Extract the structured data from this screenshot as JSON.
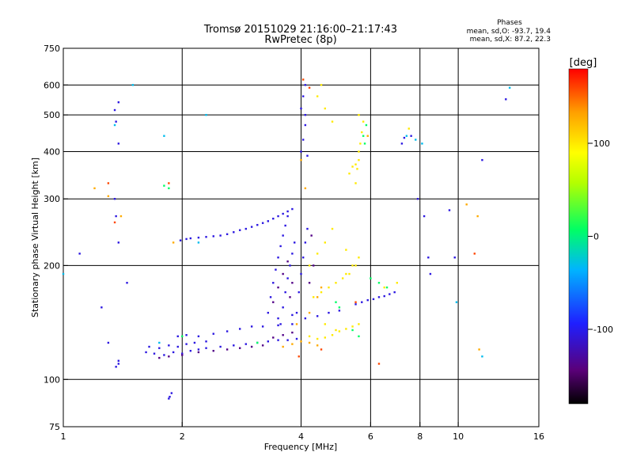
{
  "chart_data": {
    "type": "scatter",
    "title": "Tromsø 20151029 21:16:00–21:17:43",
    "subtitle": "RwPretec (8p)",
    "xlabel": "Frequency [MHz]",
    "ylabel": "Stationary phase Virtual Height [km]",
    "x_scale": "log",
    "y_scale": "log",
    "xlim": [
      1,
      16
    ],
    "ylim": [
      75,
      750
    ],
    "x_ticks": [
      1,
      2,
      4,
      6,
      8,
      10,
      16
    ],
    "y_ticks": [
      75,
      100,
      200,
      300,
      400,
      500,
      600,
      750
    ],
    "grid_x": [
      2,
      4,
      6,
      8,
      10
    ],
    "grid_y": [
      100,
      200,
      300,
      400,
      500,
      600
    ],
    "phase_stats": {
      "title": "Phases",
      "line_o": "mean, sd,O: -93.7, 19.4",
      "line_x": "mean, sd,X:  87.2, 22.3"
    },
    "colorbar": {
      "label": "[deg]",
      "range": [
        -180,
        180
      ],
      "ticks": [
        100,
        0,
        -100
      ],
      "colors": [
        "#000000",
        "#5a0078",
        "#1f1fff",
        "#00b4ff",
        "#00ff64",
        "#b4ff00",
        "#ffff00",
        "#ffa000",
        "#ff0000"
      ]
    },
    "series": [
      {
        "phase": -100,
        "points": [
          [
            1.62,
            118
          ],
          [
            1.7,
            117
          ],
          [
            1.8,
            116
          ],
          [
            1.9,
            118
          ],
          [
            2.0,
            117
          ],
          [
            2.1,
            119
          ],
          [
            2.2,
            120
          ],
          [
            2.3,
            121
          ],
          [
            2.5,
            122
          ],
          [
            2.7,
            123
          ],
          [
            2.9,
            124
          ],
          [
            3.1,
            125
          ],
          [
            3.3,
            126
          ],
          [
            3.5,
            127
          ],
          [
            3.7,
            127
          ],
          [
            3.9,
            128
          ],
          [
            1.65,
            122
          ],
          [
            1.75,
            121
          ],
          [
            1.85,
            123
          ],
          [
            1.95,
            122
          ],
          [
            2.05,
            124
          ],
          [
            2.15,
            125
          ],
          [
            2.3,
            126
          ],
          [
            1.95,
            130
          ],
          [
            2.05,
            131
          ],
          [
            2.2,
            130
          ],
          [
            2.4,
            132
          ],
          [
            2.6,
            134
          ],
          [
            2.8,
            136
          ],
          [
            3.0,
            138
          ],
          [
            3.2,
            138
          ],
          [
            3.5,
            139
          ],
          [
            3.8,
            140
          ],
          [
            1.98,
            233
          ],
          [
            2.05,
            235
          ],
          [
            2.1,
            236
          ],
          [
            2.2,
            237
          ],
          [
            2.3,
            238
          ],
          [
            2.4,
            239
          ],
          [
            2.5,
            240
          ],
          [
            2.6,
            242
          ],
          [
            2.7,
            245
          ],
          [
            2.8,
            248
          ],
          [
            2.9,
            250
          ],
          [
            3.0,
            253
          ],
          [
            3.1,
            256
          ],
          [
            3.2,
            259
          ],
          [
            3.3,
            262
          ],
          [
            3.4,
            266
          ],
          [
            3.5,
            270
          ],
          [
            3.6,
            274
          ],
          [
            3.7,
            278
          ],
          [
            3.8,
            282
          ],
          [
            3.3,
            150
          ],
          [
            3.35,
            165
          ],
          [
            3.4,
            180
          ],
          [
            3.45,
            195
          ],
          [
            3.5,
            210
          ],
          [
            3.55,
            225
          ],
          [
            3.6,
            240
          ],
          [
            3.65,
            255
          ],
          [
            3.7,
            270
          ],
          [
            3.55,
            140
          ],
          [
            3.6,
            155
          ],
          [
            3.65,
            170
          ],
          [
            3.7,
            185
          ],
          [
            3.75,
            200
          ],
          [
            3.8,
            215
          ],
          [
            3.85,
            230
          ],
          [
            3.9,
            150
          ],
          [
            3.95,
            170
          ],
          [
            4.0,
            190
          ],
          [
            4.05,
            210
          ],
          [
            4.1,
            230
          ],
          [
            4.15,
            250
          ],
          [
            4.0,
            400
          ],
          [
            4.05,
            430
          ],
          [
            4.1,
            470
          ],
          [
            4.0,
            520
          ],
          [
            4.05,
            560
          ],
          [
            4.1,
            600
          ],
          [
            4.15,
            390
          ],
          [
            4.1,
            500
          ],
          [
            5.5,
            158
          ],
          [
            5.7,
            160
          ],
          [
            5.9,
            162
          ],
          [
            6.1,
            163
          ],
          [
            6.3,
            165
          ],
          [
            6.5,
            166
          ],
          [
            6.7,
            168
          ],
          [
            6.9,
            170
          ],
          [
            3.5,
            145
          ],
          [
            3.8,
            148
          ],
          [
            4.1,
            145
          ],
          [
            4.4,
            147
          ],
          [
            4.7,
            150
          ],
          [
            5.0,
            152
          ],
          [
            1.35,
            515
          ],
          [
            1.38,
            540
          ],
          [
            1.36,
            480
          ],
          [
            1.38,
            420
          ],
          [
            1.35,
            300
          ],
          [
            1.36,
            270
          ],
          [
            1.38,
            230
          ],
          [
            1.38,
            110
          ],
          [
            1.36,
            108
          ],
          [
            1.38,
            112
          ],
          [
            1.86,
            90
          ],
          [
            1.88,
            92
          ],
          [
            1.85,
            89
          ],
          [
            7.2,
            420
          ],
          [
            7.3,
            435
          ],
          [
            7.6,
            440
          ],
          [
            7.9,
            300
          ],
          [
            8.2,
            270
          ],
          [
            8.4,
            210
          ],
          [
            8.5,
            190
          ],
          [
            9.5,
            280
          ],
          [
            9.8,
            210
          ],
          [
            11.5,
            380
          ],
          [
            13.2,
            550
          ],
          [
            1.1,
            215
          ],
          [
            1.45,
            180
          ],
          [
            1.25,
            155
          ],
          [
            1.3,
            125
          ]
        ]
      },
      {
        "phase": -130,
        "points": [
          [
            1.75,
            114
          ],
          [
            1.85,
            115
          ],
          [
            2.0,
            116
          ],
          [
            2.2,
            118
          ],
          [
            2.4,
            119
          ],
          [
            2.6,
            120
          ],
          [
            2.8,
            121
          ],
          [
            3.0,
            122
          ],
          [
            3.2,
            123
          ],
          [
            3.4,
            160
          ],
          [
            3.5,
            175
          ],
          [
            3.6,
            190
          ],
          [
            3.7,
            205
          ],
          [
            3.75,
            165
          ],
          [
            3.8,
            180
          ],
          [
            3.4,
            129
          ],
          [
            3.6,
            131
          ],
          [
            3.8,
            133
          ],
          [
            4.2,
            180
          ],
          [
            4.3,
            200
          ],
          [
            4.25,
            240
          ]
        ]
      },
      {
        "phase": 100,
        "points": [
          [
            4.2,
            130
          ],
          [
            4.4,
            128
          ],
          [
            4.6,
            129
          ],
          [
            4.8,
            131
          ],
          [
            5.0,
            134
          ],
          [
            5.2,
            136
          ],
          [
            5.4,
            138
          ],
          [
            5.6,
            140
          ],
          [
            4.3,
            165
          ],
          [
            4.5,
            170
          ],
          [
            4.7,
            175
          ],
          [
            4.9,
            180
          ],
          [
            5.1,
            185
          ],
          [
            5.3,
            190
          ],
          [
            4.2,
            200
          ],
          [
            4.4,
            215
          ],
          [
            4.6,
            230
          ],
          [
            4.8,
            250
          ],
          [
            5.2,
            220
          ],
          [
            5.4,
            200
          ],
          [
            5.5,
            330
          ],
          [
            5.55,
            360
          ],
          [
            5.6,
            380
          ],
          [
            5.6,
            400
          ],
          [
            5.65,
            420
          ],
          [
            5.7,
            450
          ],
          [
            5.75,
            480
          ],
          [
            5.6,
            500
          ],
          [
            5.5,
            370
          ],
          [
            5.4,
            365
          ],
          [
            5.3,
            350
          ],
          [
            4.4,
            560
          ],
          [
            4.5,
            600
          ],
          [
            4.6,
            520
          ],
          [
            4.8,
            480
          ],
          [
            5.2,
            190
          ],
          [
            5.5,
            200
          ],
          [
            5.6,
            210
          ],
          [
            6.5,
            175
          ],
          [
            7.0,
            180
          ],
          [
            7.5,
            460
          ],
          [
            4.6,
            140
          ],
          [
            4.9,
            135
          ]
        ]
      },
      {
        "phase": 0,
        "points": [
          [
            5.8,
            420
          ],
          [
            5.75,
            440
          ],
          [
            5.85,
            470
          ],
          [
            6.0,
            185
          ],
          [
            6.3,
            180
          ],
          [
            6.6,
            175
          ],
          [
            4.9,
            160
          ],
          [
            5.0,
            155
          ],
          [
            5.4,
            135
          ],
          [
            5.6,
            130
          ],
          [
            1.8,
            325
          ],
          [
            2.0,
            130
          ],
          [
            3.1,
            125
          ],
          [
            1.85,
            320
          ]
        ]
      },
      {
        "phase": 130,
        "points": [
          [
            3.6,
            122
          ],
          [
            3.8,
            124
          ],
          [
            4.0,
            126
          ],
          [
            4.2,
            125
          ],
          [
            4.4,
            123
          ],
          [
            3.9,
            140
          ],
          [
            4.2,
            150
          ],
          [
            4.4,
            165
          ],
          [
            4.5,
            175
          ],
          [
            4.0,
            380
          ],
          [
            4.1,
            320
          ],
          [
            5.9,
            440
          ],
          [
            1.2,
            320
          ],
          [
            1.3,
            305
          ],
          [
            1.4,
            270
          ],
          [
            1.9,
            230
          ],
          [
            10.5,
            290
          ],
          [
            11.2,
            270
          ],
          [
            11.3,
            120
          ]
        ]
      },
      {
        "phase": 160,
        "points": [
          [
            4.05,
            620
          ],
          [
            4.2,
            590
          ],
          [
            5.5,
            160
          ],
          [
            6.3,
            110
          ],
          [
            11.0,
            215
          ],
          [
            4.5,
            120
          ],
          [
            3.95,
            115
          ],
          [
            1.85,
            330
          ],
          [
            1.3,
            330
          ],
          [
            1.35,
            260
          ]
        ]
      },
      {
        "phase": -40,
        "points": [
          [
            1.35,
            470
          ],
          [
            1.5,
            600
          ],
          [
            2.2,
            230
          ],
          [
            1.8,
            440
          ],
          [
            7.4,
            440
          ],
          [
            7.8,
            430
          ],
          [
            1.0,
            190
          ],
          [
            8.1,
            420
          ],
          [
            13.5,
            590
          ],
          [
            9.9,
            160
          ],
          [
            11.5,
            115
          ],
          [
            1.75,
            125
          ],
          [
            2.3,
            500
          ]
        ]
      }
    ]
  }
}
